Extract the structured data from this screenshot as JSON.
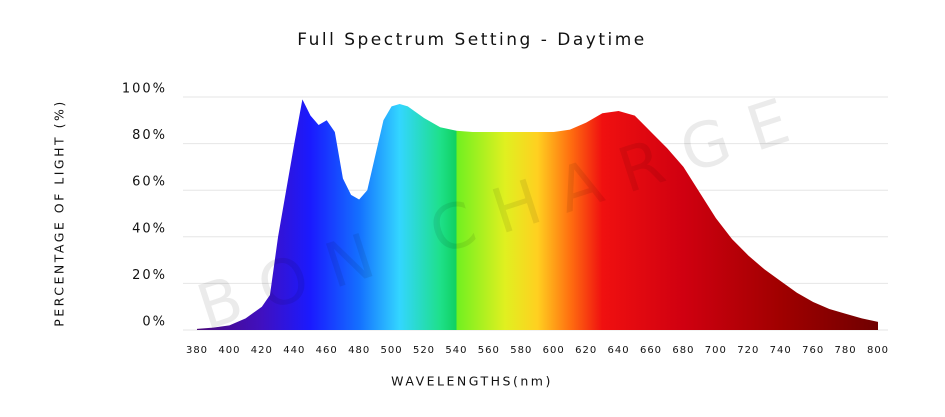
{
  "chart_data": {
    "type": "area",
    "title": "Full Spectrum Setting - Daytime",
    "x_label": "WAVELENGTHS(nm)",
    "y_label": "PERCENTAGE OF LIGHT (%)",
    "watermark": "BON CHARGE",
    "x": [
      380,
      390,
      400,
      410,
      420,
      425,
      430,
      440,
      445,
      450,
      455,
      460,
      465,
      470,
      475,
      480,
      485,
      490,
      495,
      500,
      505,
      510,
      520,
      530,
      540,
      550,
      560,
      580,
      600,
      610,
      620,
      630,
      640,
      650,
      660,
      670,
      680,
      690,
      700,
      710,
      720,
      730,
      740,
      750,
      760,
      770,
      780,
      790,
      800
    ],
    "values": [
      0.5,
      1,
      2,
      5,
      10,
      15,
      40,
      80,
      99,
      92,
      88,
      90,
      85,
      65,
      58,
      56,
      60,
      75,
      90,
      96,
      97,
      96,
      91,
      87,
      85.5,
      85,
      85,
      85,
      85,
      86,
      89,
      93,
      94,
      92,
      85,
      78,
      70,
      59,
      48,
      39,
      32,
      26,
      21,
      16,
      12,
      9,
      7,
      5,
      3.5
    ],
    "gradient": [
      {
        "x": 380,
        "color": "#4b0a7a"
      },
      {
        "x": 420,
        "color": "#4010c0"
      },
      {
        "x": 450,
        "color": "#1a1aff"
      },
      {
        "x": 480,
        "color": "#1470ff"
      },
      {
        "x": 505,
        "color": "#33d6ff"
      },
      {
        "x": 530,
        "color": "#1ee08a"
      },
      {
        "x": 540,
        "color": "#10d060"
      },
      {
        "x": 540,
        "color": "#70f020"
      },
      {
        "x": 570,
        "color": "#e0f020"
      },
      {
        "x": 590,
        "color": "#ffd020"
      },
      {
        "x": 610,
        "color": "#ff7010"
      },
      {
        "x": 630,
        "color": "#f01010"
      },
      {
        "x": 680,
        "color": "#d00010"
      },
      {
        "x": 740,
        "color": "#a00000"
      },
      {
        "x": 800,
        "color": "#700000"
      }
    ],
    "xlim": [
      380,
      800
    ],
    "xticks": [
      380,
      400,
      420,
      440,
      460,
      480,
      500,
      520,
      540,
      560,
      580,
      600,
      620,
      640,
      660,
      680,
      700,
      720,
      740,
      760,
      780,
      800
    ],
    "ylim": [
      0,
      100
    ],
    "yticks": [
      {
        "value": 0,
        "label": "0%"
      },
      {
        "value": 20,
        "label": "20%"
      },
      {
        "value": 40,
        "label": "40%"
      },
      {
        "value": 60,
        "label": "60%"
      },
      {
        "value": 80,
        "label": "80%"
      },
      {
        "value": 100,
        "label": "100%"
      }
    ],
    "grid": true
  }
}
